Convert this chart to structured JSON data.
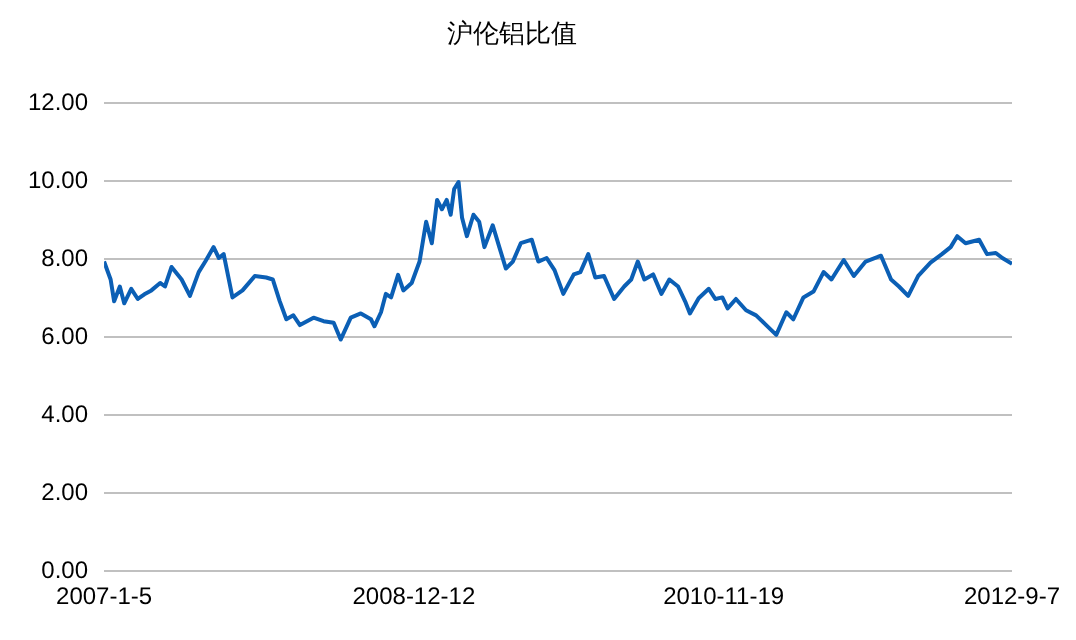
{
  "chart_data": {
    "type": "line",
    "title": "沪伦铝比值",
    "x": [
      "2007-01-05",
      "2007-01-20",
      "2007-01-28",
      "2007-02-10",
      "2007-02-20",
      "2007-03-08",
      "2007-03-23",
      "2007-04-07",
      "2007-04-23",
      "2007-05-13",
      "2007-05-24",
      "2007-06-08",
      "2007-07-01",
      "2007-07-20",
      "2007-08-09",
      "2007-08-24",
      "2007-09-12",
      "2007-09-24",
      "2007-10-05",
      "2007-10-25",
      "2007-11-17",
      "2007-12-15",
      "2008-01-10",
      "2008-01-25",
      "2008-02-10",
      "2008-02-25",
      "2008-03-12",
      "2008-03-27",
      "2008-04-27",
      "2008-05-20",
      "2008-06-12",
      "2008-06-28",
      "2008-07-21",
      "2008-08-13",
      "2008-09-05",
      "2008-09-13",
      "2008-09-28",
      "2008-10-09",
      "2008-10-21",
      "2008-11-06",
      "2008-11-18",
      "2008-12-07",
      "2008-12-25",
      "2009-01-09",
      "2009-01-22",
      "2009-02-03",
      "2009-02-14",
      "2009-02-25",
      "2009-03-06",
      "2009-03-14",
      "2009-03-24",
      "2009-04-01",
      "2009-04-12",
      "2009-04-27",
      "2009-05-10",
      "2009-05-22",
      "2009-06-10",
      "2009-06-25",
      "2009-07-10",
      "2009-07-26",
      "2009-08-13",
      "2009-09-07",
      "2009-09-22",
      "2009-10-11",
      "2009-10-29",
      "2009-11-18",
      "2009-12-12",
      "2009-12-27",
      "2010-01-14",
      "2010-01-30",
      "2010-02-19",
      "2010-03-14",
      "2010-04-06",
      "2010-04-22",
      "2010-05-07",
      "2010-05-22",
      "2010-06-11",
      "2010-06-30",
      "2010-07-18",
      "2010-08-07",
      "2010-08-23",
      "2010-09-03",
      "2010-09-23",
      "2010-10-16",
      "2010-10-31",
      "2010-11-16",
      "2010-11-28",
      "2010-12-17",
      "2011-01-09",
      "2011-02-01",
      "2011-02-24",
      "2011-03-19",
      "2011-04-11",
      "2011-04-27",
      "2011-05-20",
      "2011-06-12",
      "2011-07-05",
      "2011-07-23",
      "2011-08-20",
      "2011-09-12",
      "2011-10-09",
      "2011-11-13",
      "2011-12-06",
      "2011-12-24",
      "2012-01-14",
      "2012-02-06",
      "2012-03-05",
      "2012-03-31",
      "2012-04-20",
      "2012-05-05",
      "2012-05-24",
      "2012-06-24",
      "2012-07-12",
      "2012-08-01",
      "2012-08-16",
      "2012-09-07"
    ],
    "series": [
      {
        "color": "#0b5fb5",
        "values": [
          7.94,
          7.48,
          6.92,
          7.3,
          6.87,
          7.24,
          6.98,
          7.1,
          7.2,
          7.39,
          7.3,
          7.8,
          7.48,
          7.06,
          7.67,
          7.94,
          8.31,
          8.03,
          8.13,
          7.02,
          7.2,
          7.57,
          7.53,
          7.48,
          6.92,
          6.46,
          6.56,
          6.31,
          6.5,
          6.41,
          6.37,
          5.94,
          6.5,
          6.61,
          6.46,
          6.28,
          6.64,
          7.11,
          7.02,
          7.6,
          7.2,
          7.39,
          7.94,
          8.96,
          8.41,
          9.52,
          9.28,
          9.52,
          9.14,
          9.8,
          9.98,
          9.06,
          8.59,
          9.14,
          8.96,
          8.31,
          8.87,
          8.31,
          7.76,
          7.94,
          8.41,
          8.5,
          7.94,
          8.03,
          7.72,
          7.11,
          7.61,
          7.67,
          8.13,
          7.53,
          7.57,
          6.98,
          7.3,
          7.48,
          7.94,
          7.48,
          7.61,
          7.11,
          7.48,
          7.3,
          6.92,
          6.61,
          7.0,
          7.24,
          6.98,
          7.02,
          6.74,
          6.98,
          6.69,
          6.56,
          6.31,
          6.06,
          6.64,
          6.46,
          7.02,
          7.17,
          7.67,
          7.48,
          7.98,
          7.57,
          7.94,
          8.09,
          7.48,
          7.3,
          7.06,
          7.57,
          7.91,
          8.13,
          8.31,
          8.59,
          8.41,
          8.5,
          8.13,
          8.16,
          8.03,
          7.88
        ]
      }
    ],
    "xlim": [
      "2007-01-05",
      "2012-09-07"
    ],
    "xticks": [
      {
        "value": "2007-01-05",
        "label": "2007-1-5"
      },
      {
        "value": "2008-12-12",
        "label": "2008-12-12"
      },
      {
        "value": "2010-11-19",
        "label": "2010-11-19"
      },
      {
        "value": "2012-09-07",
        "label": "2012-9-7"
      }
    ],
    "ylim": [
      0,
      12
    ],
    "yticks": [
      {
        "value": 0,
        "label": "0.00"
      },
      {
        "value": 2,
        "label": "2.00"
      },
      {
        "value": 4,
        "label": "4.00"
      },
      {
        "value": 6,
        "label": "6.00"
      },
      {
        "value": 8,
        "label": "8.00"
      },
      {
        "value": 10,
        "label": "10.00"
      },
      {
        "value": 12,
        "label": "12.00"
      }
    ],
    "grid": "y",
    "legend": false,
    "marker": "none",
    "line_style": "solid"
  }
}
